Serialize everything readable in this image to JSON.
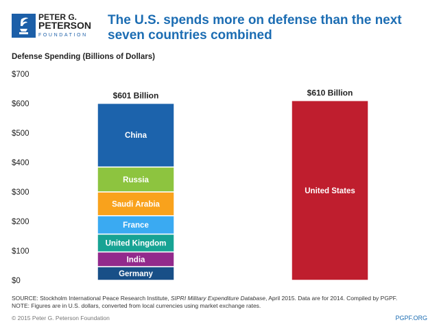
{
  "header": {
    "logo_lines": [
      "PETER G.",
      "PETERSON",
      "FOUNDATION"
    ],
    "title": "The U.S. spends more on defense than the next seven countries combined"
  },
  "chart_data": {
    "type": "bar",
    "stacked": true,
    "ylabel": "Defense Spending (Billions of Dollars)",
    "ylim": [
      0,
      700
    ],
    "yticks": [
      0,
      100,
      200,
      300,
      400,
      500,
      600,
      700
    ],
    "ytick_labels": [
      "$0",
      "$100",
      "$200",
      "$300",
      "$400",
      "$500",
      "$600",
      "$700"
    ],
    "grid": false,
    "bars": [
      {
        "total_label": "$601 Billion",
        "segments": [
          {
            "name": "Germany",
            "value": 46.5,
            "color": "#184f87"
          },
          {
            "name": "India",
            "value": 50,
            "color": "#922a8c"
          },
          {
            "name": "United Kingdom",
            "value": 60.5,
            "color": "#17a394"
          },
          {
            "name": "France",
            "value": 62.3,
            "color": "#3aaaf2"
          },
          {
            "name": "Saudi Arabia",
            "value": 80.8,
            "color": "#f9a21c"
          },
          {
            "name": "Russia",
            "value": 84.5,
            "color": "#8dc43f"
          },
          {
            "name": "China",
            "value": 216,
            "color": "#1c63ac"
          }
        ]
      },
      {
        "total_label": "$610 Billion",
        "segments": [
          {
            "name": "United States",
            "value": 610,
            "color": "#bf1e2e"
          }
        ]
      }
    ]
  },
  "footer": {
    "source_prefix": "SOURCE: Stockholm International Peace Research Institute, ",
    "source_italic": "SIPRI Military Expenditure Database",
    "source_suffix": ", April 2015. Data are for 2014. Compiled by PGPF.",
    "note": "NOTE: Figures are in U.S. dollars, converted from local currencies using market exchange rates.",
    "copyright": "© 2015 Peter G. Peterson Foundation",
    "site": "PGPF.ORG"
  }
}
